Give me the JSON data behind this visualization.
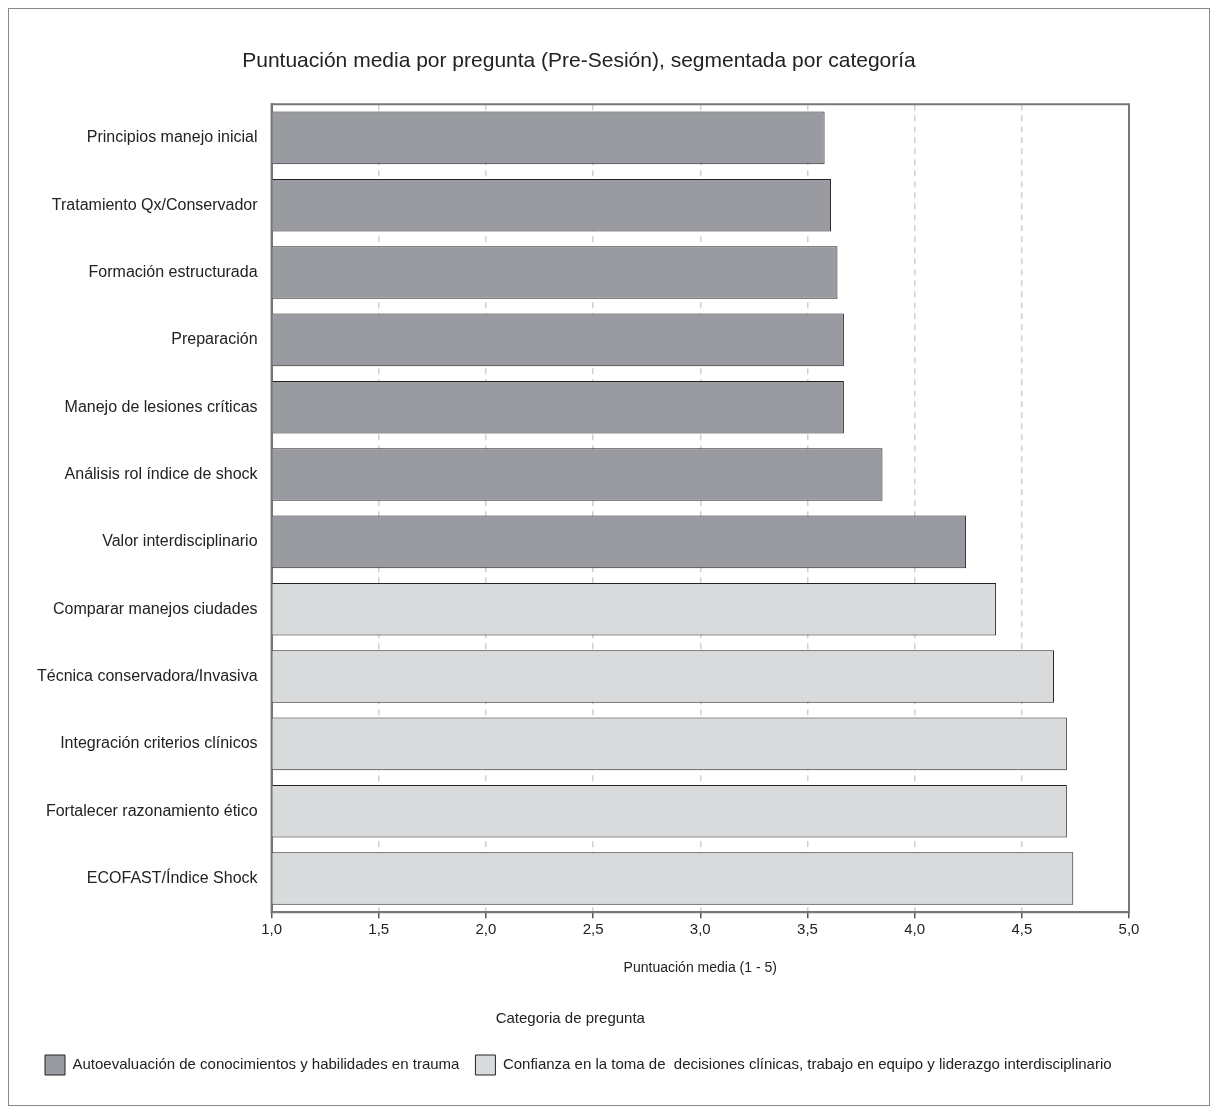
{
  "chart_data": {
    "type": "bar",
    "orientation": "horizontal",
    "title": "Puntuación media por pregunta (Pre-Sesión), segmentada por categoría",
    "xlabel": "Puntuación media (1 - 5)",
    "legend_title": "Categoria de pregunta",
    "legend": "bottom left",
    "grid": "x",
    "categories": [
      "Principios manejo inicial",
      "Tratamiento Qx/Conservador",
      "Formación estructurada",
      "Preparación",
      "Manejo de lesiones críticas",
      "Análisis rol índice de shock",
      "Valor interdisciplinario",
      "Comparar manejos ciudades",
      "Técnica conservadora/Invasiva",
      "Integración criterios clínicos",
      "Fortalecer razonamiento ético",
      "ECOFAST/Índice Shock"
    ],
    "series": [
      {
        "name": "Autoevaluación de conocimientos y habilidades en trauma",
        "color": "#9a9ba0",
        "values": [
          3.58,
          3.61,
          3.64,
          3.67,
          3.67,
          3.85,
          4.24,
          null,
          null,
          null,
          null,
          null
        ]
      },
      {
        "name": "Confianza en la toma de  decisiones clínicas, trabajo en equipo y liderazgo interdisciplinario",
        "color": "#d9dadc",
        "values": [
          null,
          null,
          null,
          null,
          null,
          null,
          null,
          4.38,
          4.65,
          4.71,
          4.71,
          4.74
        ]
      }
    ],
    "xlim": [
      1,
      5
    ],
    "xticks": [
      {
        "value": 1,
        "label": "1,0"
      },
      {
        "value": 1.5,
        "label": "1,5"
      },
      {
        "value": 2,
        "label": "2,0"
      },
      {
        "value": 2.5,
        "label": "2,5"
      },
      {
        "value": 3,
        "label": "3,0"
      },
      {
        "value": 3.5,
        "label": "3,5"
      },
      {
        "value": 4,
        "label": "4,0"
      },
      {
        "value": 4.5,
        "label": "4,5"
      },
      {
        "value": 5,
        "label": "5,0"
      }
    ]
  }
}
